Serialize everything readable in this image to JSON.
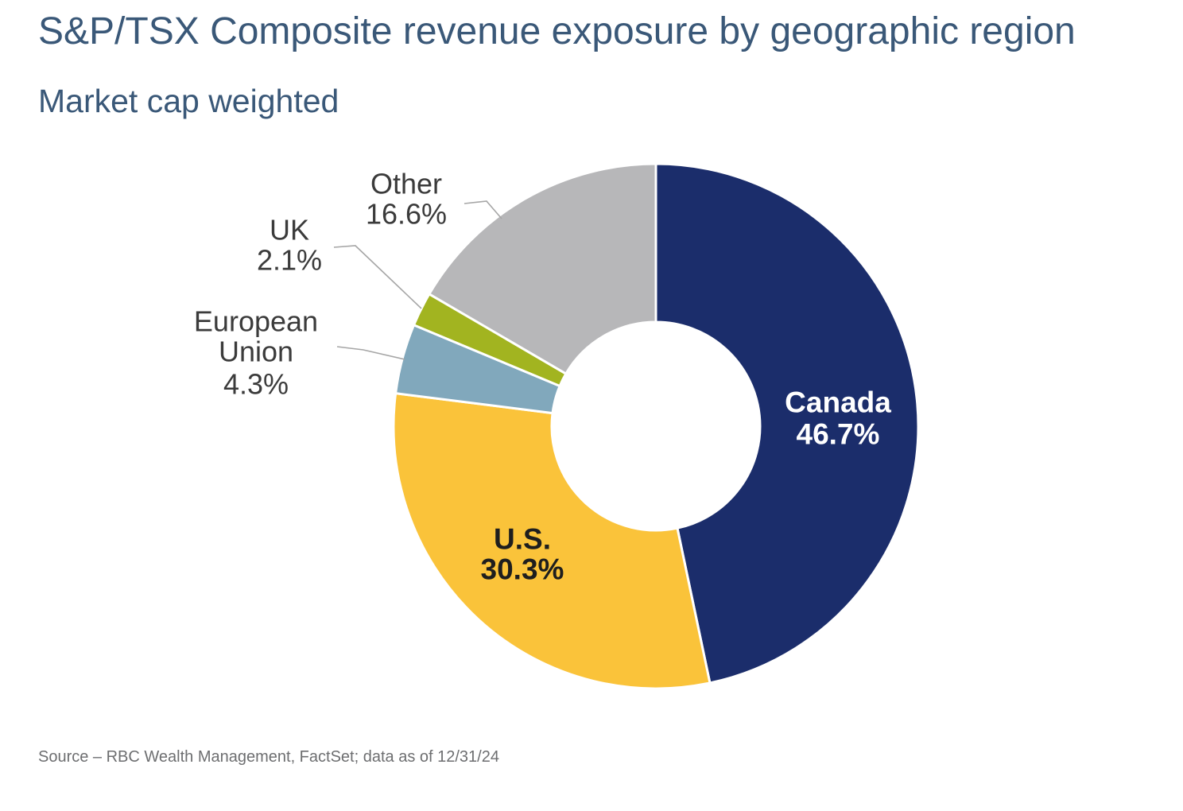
{
  "header": {
    "title": "S&P/TSX Composite revenue exposure by geographic region",
    "subtitle": "Market cap weighted"
  },
  "footer": {
    "source": "Source – RBC Wealth Management, FactSet; data as of 12/31/24"
  },
  "colors": {
    "background": "#ffffff",
    "title_text": "#3a5878",
    "outside_label_text": "#3b3b3b",
    "leader_line": "#a6a6a6",
    "source_text": "#6d6e70",
    "slice_divider": "#ffffff"
  },
  "chart_data": {
    "type": "pie",
    "variant": "donut",
    "title": "S&P/TSX Composite revenue exposure by geographic region",
    "subtitle": "Market cap weighted",
    "categories": [
      "Canada",
      "U.S.",
      "European Union",
      "UK",
      "Other"
    ],
    "values": [
      46.7,
      30.3,
      4.3,
      2.1,
      16.6
    ],
    "value_labels": [
      "46.7%",
      "30.3%",
      "4.3%",
      "2.1%",
      "16.6%"
    ],
    "display_labels": [
      "Canada 46.7%",
      "U.S. 30.3%",
      "European Union 4.3%",
      "UK 2.1%",
      "Other 16.6%"
    ],
    "slice_colors": [
      "#1b2d6b",
      "#fac33a",
      "#81a8bc",
      "#a2b420",
      "#b7b7b9"
    ],
    "label_text_colors": [
      "#ffffff",
      "#1e1e1e",
      "#3b3b3b",
      "#3b3b3b",
      "#3b3b3b"
    ],
    "label_placement": [
      "inside",
      "inside",
      "outside",
      "outside",
      "outside"
    ],
    "start_angle_deg": 0,
    "direction": "clockwise",
    "inner_radius_ratio": 0.4,
    "legend": "none",
    "grid": "off",
    "source": "Source – RBC Wealth Management, FactSet; data as of 12/31/24"
  }
}
